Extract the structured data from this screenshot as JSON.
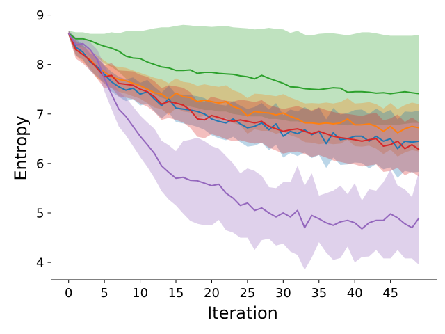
{
  "chart_data": {
    "type": "line",
    "title": "",
    "xlabel": "Iteration",
    "ylabel": "Entropy",
    "xlim": [
      -2.45,
      51.45
    ],
    "ylim": [
      3.65,
      9.05
    ],
    "xticks": [
      0,
      5,
      10,
      15,
      20,
      25,
      30,
      35,
      40,
      45
    ],
    "yticks": [
      4,
      5,
      6,
      7,
      8,
      9
    ],
    "x": [
      0,
      1,
      2,
      3,
      4,
      5,
      6,
      7,
      8,
      9,
      10,
      11,
      12,
      13,
      14,
      15,
      16,
      17,
      18,
      19,
      20,
      21,
      22,
      23,
      24,
      25,
      26,
      27,
      28,
      29,
      30,
      31,
      32,
      33,
      34,
      35,
      36,
      37,
      38,
      39,
      40,
      41,
      42,
      43,
      44,
      45,
      46,
      47,
      48,
      49
    ],
    "series": [
      {
        "name": "green",
        "color": "#2ca02c",
        "values": [
          8.63,
          8.52,
          8.52,
          8.48,
          8.42,
          8.37,
          8.33,
          8.27,
          8.17,
          8.13,
          8.12,
          8.05,
          8.0,
          7.95,
          7.93,
          7.88,
          7.88,
          7.89,
          7.82,
          7.84,
          7.84,
          7.82,
          7.81,
          7.8,
          7.77,
          7.75,
          7.71,
          7.78,
          7.72,
          7.67,
          7.62,
          7.55,
          7.54,
          7.51,
          7.5,
          7.49,
          7.51,
          7.53,
          7.52,
          7.44,
          7.45,
          7.45,
          7.44,
          7.42,
          7.43,
          7.41,
          7.43,
          7.45,
          7.43,
          7.41
        ],
        "upper": [
          8.68,
          8.65,
          8.65,
          8.62,
          8.62,
          8.62,
          8.65,
          8.63,
          8.67,
          8.67,
          8.67,
          8.7,
          8.73,
          8.75,
          8.75,
          8.78,
          8.8,
          8.79,
          8.77,
          8.77,
          8.76,
          8.77,
          8.78,
          8.75,
          8.74,
          8.73,
          8.71,
          8.72,
          8.74,
          8.72,
          8.71,
          8.64,
          8.68,
          8.6,
          8.59,
          8.62,
          8.63,
          8.63,
          8.61,
          8.59,
          8.62,
          8.65,
          8.65,
          8.63,
          8.6,
          8.58,
          8.58,
          8.58,
          8.58,
          8.6
        ],
        "lower": [
          8.58,
          8.38,
          8.35,
          8.28,
          8.15,
          8.02,
          7.95,
          7.85,
          7.72,
          7.62,
          7.58,
          7.5,
          7.4,
          7.33,
          7.28,
          7.22,
          7.18,
          7.15,
          7.12,
          7.08,
          7.08,
          7.05,
          7.05,
          7.0,
          6.98,
          6.95,
          6.95,
          6.95,
          6.9,
          6.9,
          6.88,
          6.85,
          6.85,
          6.82,
          6.82,
          6.8,
          6.8,
          6.8,
          6.78,
          6.77,
          6.78,
          6.8,
          6.8,
          6.78,
          6.78,
          6.78,
          6.78,
          6.8,
          6.82,
          6.82
        ]
      },
      {
        "name": "orange",
        "color": "#ff7f0e",
        "values": [
          8.63,
          8.3,
          8.2,
          8.1,
          7.95,
          7.85,
          7.75,
          7.7,
          7.67,
          7.62,
          7.57,
          7.5,
          7.43,
          7.4,
          7.3,
          7.42,
          7.35,
          7.33,
          7.25,
          7.28,
          7.25,
          7.22,
          7.25,
          7.15,
          7.1,
          6.96,
          7.05,
          7.03,
          7.02,
          6.98,
          7.02,
          6.95,
          6.9,
          6.82,
          6.82,
          6.8,
          6.82,
          6.8,
          6.82,
          6.9,
          6.78,
          6.78,
          6.8,
          6.75,
          6.65,
          6.75,
          6.62,
          6.7,
          6.75,
          6.72
        ],
        "upper": [
          8.68,
          8.42,
          8.35,
          8.28,
          8.18,
          8.08,
          7.98,
          7.95,
          7.93,
          7.88,
          7.83,
          7.78,
          7.73,
          7.7,
          7.62,
          7.72,
          7.65,
          7.63,
          7.57,
          7.6,
          7.57,
          7.55,
          7.58,
          7.48,
          7.43,
          7.32,
          7.41,
          7.4,
          7.38,
          7.36,
          7.4,
          7.33,
          7.28,
          7.21,
          7.22,
          7.21,
          7.23,
          7.21,
          7.24,
          7.32,
          7.21,
          7.22,
          7.24,
          7.2,
          7.11,
          7.22,
          7.1,
          7.18,
          7.23,
          7.2
        ],
        "lower": [
          8.58,
          8.18,
          8.05,
          7.92,
          7.72,
          7.62,
          7.52,
          7.45,
          7.41,
          7.36,
          7.31,
          7.22,
          7.13,
          7.1,
          6.98,
          7.12,
          7.05,
          7.03,
          6.93,
          6.96,
          6.93,
          6.89,
          6.92,
          6.82,
          6.77,
          6.6,
          6.69,
          6.66,
          6.66,
          6.6,
          6.64,
          6.57,
          6.52,
          6.43,
          6.42,
          6.39,
          6.41,
          6.39,
          6.4,
          6.48,
          6.35,
          6.34,
          6.36,
          6.3,
          6.19,
          6.28,
          6.14,
          6.22,
          6.27,
          6.24
        ]
      },
      {
        "name": "blue",
        "color": "#1f77b4",
        "values": [
          8.63,
          8.35,
          8.25,
          8.05,
          7.95,
          7.8,
          7.65,
          7.55,
          7.48,
          7.52,
          7.4,
          7.45,
          7.3,
          7.17,
          7.3,
          7.12,
          7.1,
          7.08,
          7.05,
          7.0,
          6.9,
          6.85,
          6.82,
          6.9,
          6.8,
          6.72,
          6.75,
          6.82,
          6.68,
          6.8,
          6.55,
          6.65,
          6.6,
          6.68,
          6.58,
          6.65,
          6.4,
          6.62,
          6.48,
          6.5,
          6.55,
          6.55,
          6.45,
          6.55,
          6.45,
          6.5,
          6.3,
          6.45,
          6.43,
          6.45
        ],
        "upper": [
          8.68,
          8.52,
          8.4,
          8.22,
          8.15,
          7.98,
          7.85,
          7.75,
          7.7,
          7.74,
          7.63,
          7.69,
          7.55,
          7.43,
          7.57,
          7.4,
          7.39,
          7.38,
          7.36,
          7.32,
          7.23,
          7.19,
          7.17,
          7.26,
          7.17,
          7.1,
          7.14,
          7.22,
          7.09,
          7.22,
          6.98,
          7.09,
          7.05,
          7.14,
          7.05,
          7.13,
          6.89,
          7.12,
          6.99,
          7.02,
          7.08,
          7.09,
          7.0,
          7.11,
          7.02,
          7.08,
          6.89,
          7.05,
          7.04,
          7.07
        ],
        "lower": [
          8.58,
          8.18,
          8.1,
          7.88,
          7.75,
          7.62,
          7.45,
          7.35,
          7.26,
          7.3,
          7.17,
          7.21,
          7.05,
          6.91,
          7.03,
          6.84,
          6.81,
          6.78,
          6.74,
          6.68,
          6.57,
          6.51,
          6.47,
          6.54,
          6.43,
          6.34,
          6.36,
          6.42,
          6.27,
          6.38,
          6.12,
          6.21,
          6.15,
          6.22,
          6.11,
          6.17,
          5.91,
          6.12,
          5.97,
          5.98,
          6.02,
          6.01,
          5.9,
          5.99,
          5.88,
          5.92,
          5.71,
          5.85,
          5.82,
          5.83
        ]
      },
      {
        "name": "red",
        "color": "#d62728",
        "values": [
          8.63,
          8.3,
          8.2,
          8.08,
          7.92,
          7.75,
          7.78,
          7.62,
          7.6,
          7.58,
          7.5,
          7.45,
          7.35,
          7.2,
          7.25,
          7.22,
          7.18,
          7.08,
          6.9,
          6.88,
          6.97,
          6.93,
          6.88,
          6.85,
          6.88,
          6.85,
          6.82,
          6.85,
          6.75,
          6.7,
          6.65,
          6.68,
          6.7,
          6.65,
          6.6,
          6.65,
          6.6,
          6.55,
          6.52,
          6.5,
          6.48,
          6.45,
          6.48,
          6.5,
          6.35,
          6.38,
          6.45,
          6.3,
          6.38,
          6.28
        ],
        "upper": [
          8.68,
          8.48,
          8.38,
          8.28,
          8.13,
          7.98,
          8.03,
          7.88,
          7.87,
          7.86,
          7.79,
          7.75,
          7.66,
          7.52,
          7.58,
          7.56,
          7.53,
          7.44,
          7.26,
          7.25,
          7.35,
          7.31,
          7.27,
          7.25,
          7.29,
          7.27,
          7.24,
          7.28,
          7.18,
          7.14,
          7.1,
          7.13,
          7.16,
          7.11,
          7.07,
          7.13,
          7.08,
          7.04,
          7.01,
          7.0,
          6.98,
          6.96,
          7.0,
          7.02,
          6.87,
          6.91,
          6.99,
          6.84,
          6.93,
          6.83
        ],
        "lower": [
          8.58,
          8.12,
          8.02,
          7.88,
          7.71,
          7.52,
          7.53,
          7.36,
          7.33,
          7.3,
          7.21,
          7.15,
          7.04,
          6.88,
          6.92,
          6.88,
          6.83,
          6.72,
          6.54,
          6.51,
          6.59,
          6.55,
          6.49,
          6.45,
          6.47,
          6.43,
          6.4,
          6.42,
          6.32,
          6.26,
          6.2,
          6.23,
          6.24,
          6.19,
          6.13,
          6.17,
          6.12,
          6.06,
          6.03,
          6.0,
          5.98,
          5.94,
          5.96,
          5.98,
          5.83,
          5.85,
          5.91,
          5.76,
          5.83,
          5.73
        ]
      },
      {
        "name": "purple",
        "color": "#9467bd",
        "values": [
          8.63,
          8.4,
          8.42,
          8.3,
          8.1,
          7.72,
          7.4,
          7.1,
          6.95,
          6.75,
          6.55,
          6.38,
          6.2,
          5.95,
          5.82,
          5.7,
          5.72,
          5.66,
          5.65,
          5.6,
          5.55,
          5.58,
          5.4,
          5.3,
          5.15,
          5.2,
          5.05,
          5.1,
          5.0,
          4.92,
          5.0,
          4.92,
          5.05,
          4.7,
          4.95,
          4.88,
          4.8,
          4.75,
          4.82,
          4.85,
          4.8,
          4.68,
          4.8,
          4.85,
          4.85,
          4.98,
          4.9,
          4.78,
          4.7,
          4.9
        ],
        "upper": [
          8.68,
          8.55,
          8.55,
          8.45,
          8.3,
          7.98,
          7.7,
          7.45,
          7.33,
          7.15,
          6.97,
          6.83,
          6.7,
          6.46,
          6.37,
          6.25,
          6.45,
          6.48,
          6.52,
          6.45,
          6.35,
          6.3,
          6.15,
          6.0,
          5.8,
          5.9,
          5.85,
          5.75,
          5.52,
          5.5,
          5.62,
          5.62,
          5.95,
          5.55,
          5.8,
          5.35,
          5.4,
          5.45,
          5.55,
          5.38,
          5.6,
          5.25,
          5.48,
          5.45,
          5.62,
          5.88,
          5.55,
          5.48,
          5.32,
          5.85
        ],
        "lower": [
          8.58,
          8.25,
          8.29,
          8.15,
          7.9,
          7.46,
          7.1,
          6.75,
          6.57,
          6.35,
          6.13,
          5.93,
          5.7,
          5.44,
          5.27,
          5.15,
          4.99,
          4.84,
          4.78,
          4.75,
          4.75,
          4.86,
          4.65,
          4.6,
          4.5,
          4.5,
          4.25,
          4.45,
          4.48,
          4.34,
          4.38,
          4.22,
          4.15,
          3.85,
          4.1,
          4.41,
          4.2,
          4.05,
          4.09,
          4.32,
          4.0,
          4.11,
          4.12,
          4.25,
          4.08,
          4.08,
          4.25,
          4.08,
          4.08,
          3.95
        ]
      }
    ]
  }
}
